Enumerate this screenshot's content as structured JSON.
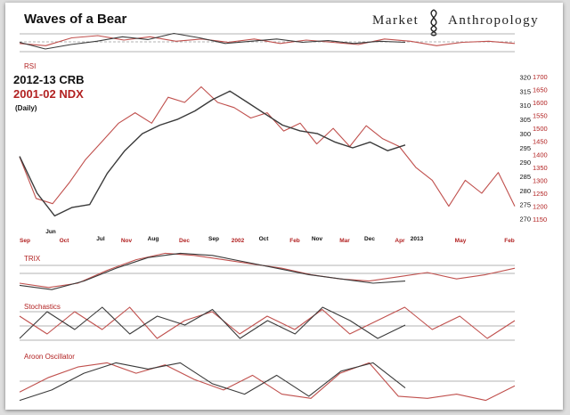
{
  "header": {
    "title": "Waves of a Bear",
    "brand_left": "Market",
    "brand_right": "Anthropology",
    "brand_icon": "dna-helix-icon"
  },
  "legend": {
    "series_a": "2012-13 CRB",
    "series_b": "2001-02 NDX",
    "frequency": "(Daily)"
  },
  "colors": {
    "crb": "#3a3a3a",
    "ndx": "#c0504d",
    "label_red": "#b22222",
    "panel_line": "#9a9a9a"
  },
  "chart_data": [
    {
      "type": "line",
      "panel": "RSI",
      "title": "RSI",
      "series": [
        {
          "name": "2012-13 CRB",
          "values": [
            50,
            38,
            46,
            52,
            60,
            55,
            66,
            58,
            48,
            52,
            56,
            50,
            53,
            48,
            52,
            50
          ]
        },
        {
          "name": "2001-02 NDX",
          "values": [
            48,
            44,
            58,
            62,
            54,
            60,
            52,
            56,
            50,
            56,
            48,
            54,
            50,
            46,
            56,
            52,
            44,
            50,
            52,
            48
          ]
        }
      ]
    },
    {
      "type": "line",
      "panel": "main",
      "left_axis_label": "CRB",
      "right_axis_label": "NDX",
      "y_ticks_crb": [
        320,
        315,
        310,
        305,
        300,
        295,
        290,
        285,
        280,
        275,
        270
      ],
      "y_ticks_ndx": [
        1700,
        1650,
        1600,
        1550,
        1500,
        1450,
        1400,
        1350,
        1300,
        1250,
        1200,
        1150
      ],
      "ylim_crb": [
        268,
        322
      ],
      "ylim_ndx": [
        1130,
        1720
      ],
      "x_labels_crb": [
        "Jun",
        "Jul",
        "Aug",
        "Sep",
        "Oct",
        "Nov",
        "Dec",
        "2013"
      ],
      "x_labels_ndx": [
        "Sep",
        "Oct",
        "Nov",
        "Dec",
        "2002",
        "Feb",
        "Mar",
        "Apr",
        "May",
        "Feb"
      ],
      "series": [
        {
          "name": "2012-13 CRB",
          "axis": "crb",
          "values": [
            292,
            279,
            271,
            274,
            275,
            286,
            294,
            300,
            303,
            305,
            308,
            312,
            315,
            311,
            307,
            303,
            301,
            300,
            297,
            295,
            297,
            294,
            296
          ]
        },
        {
          "name": "2001-02 NDX",
          "axis": "ndx",
          "values": [
            1390,
            1230,
            1210,
            1290,
            1380,
            1450,
            1520,
            1560,
            1520,
            1620,
            1600,
            1660,
            1600,
            1580,
            1540,
            1560,
            1490,
            1520,
            1440,
            1500,
            1430,
            1510,
            1460,
            1430,
            1350,
            1300,
            1200,
            1300,
            1250,
            1330,
            1200
          ]
        }
      ]
    },
    {
      "type": "line",
      "panel": "TRIX",
      "title": "TRIX",
      "series": [
        {
          "name": "2012-13 CRB",
          "values": [
            -0.6,
            -0.8,
            -0.4,
            0.2,
            0.7,
            0.9,
            0.8,
            0.5,
            0.2,
            -0.1,
            -0.3,
            -0.5,
            -0.4
          ]
        },
        {
          "name": "2001-02 NDX",
          "values": [
            -0.5,
            -0.7,
            -0.5,
            0.1,
            0.6,
            0.9,
            0.8,
            0.6,
            0.4,
            0.2,
            -0.1,
            -0.3,
            -0.4,
            -0.2,
            0.0,
            -0.3,
            -0.1,
            0.2
          ]
        }
      ]
    },
    {
      "type": "line",
      "panel": "Stochastics",
      "title": "Stochastics",
      "series": [
        {
          "name": "2012-13 CRB",
          "values": [
            20,
            80,
            40,
            90,
            30,
            70,
            50,
            85,
            20,
            60,
            30,
            90,
            60,
            20,
            50
          ]
        },
        {
          "name": "2001-02 NDX",
          "values": [
            70,
            30,
            80,
            40,
            90,
            20,
            60,
            80,
            30,
            70,
            40,
            85,
            30,
            60,
            90,
            40,
            70,
            20,
            60
          ]
        }
      ]
    },
    {
      "type": "line",
      "panel": "Aroon Oscillator",
      "title": "Aroon Oscillator",
      "series": [
        {
          "name": "2012-13 CRB",
          "values": [
            -90,
            -40,
            40,
            90,
            60,
            90,
            -10,
            -60,
            30,
            -70,
            50,
            90,
            -30
          ]
        },
        {
          "name": "2001-02 NDX",
          "values": [
            -50,
            20,
            70,
            90,
            40,
            80,
            10,
            -40,
            30,
            -60,
            -80,
            40,
            90,
            -70,
            -80,
            -60,
            -90,
            -20
          ]
        }
      ]
    }
  ]
}
